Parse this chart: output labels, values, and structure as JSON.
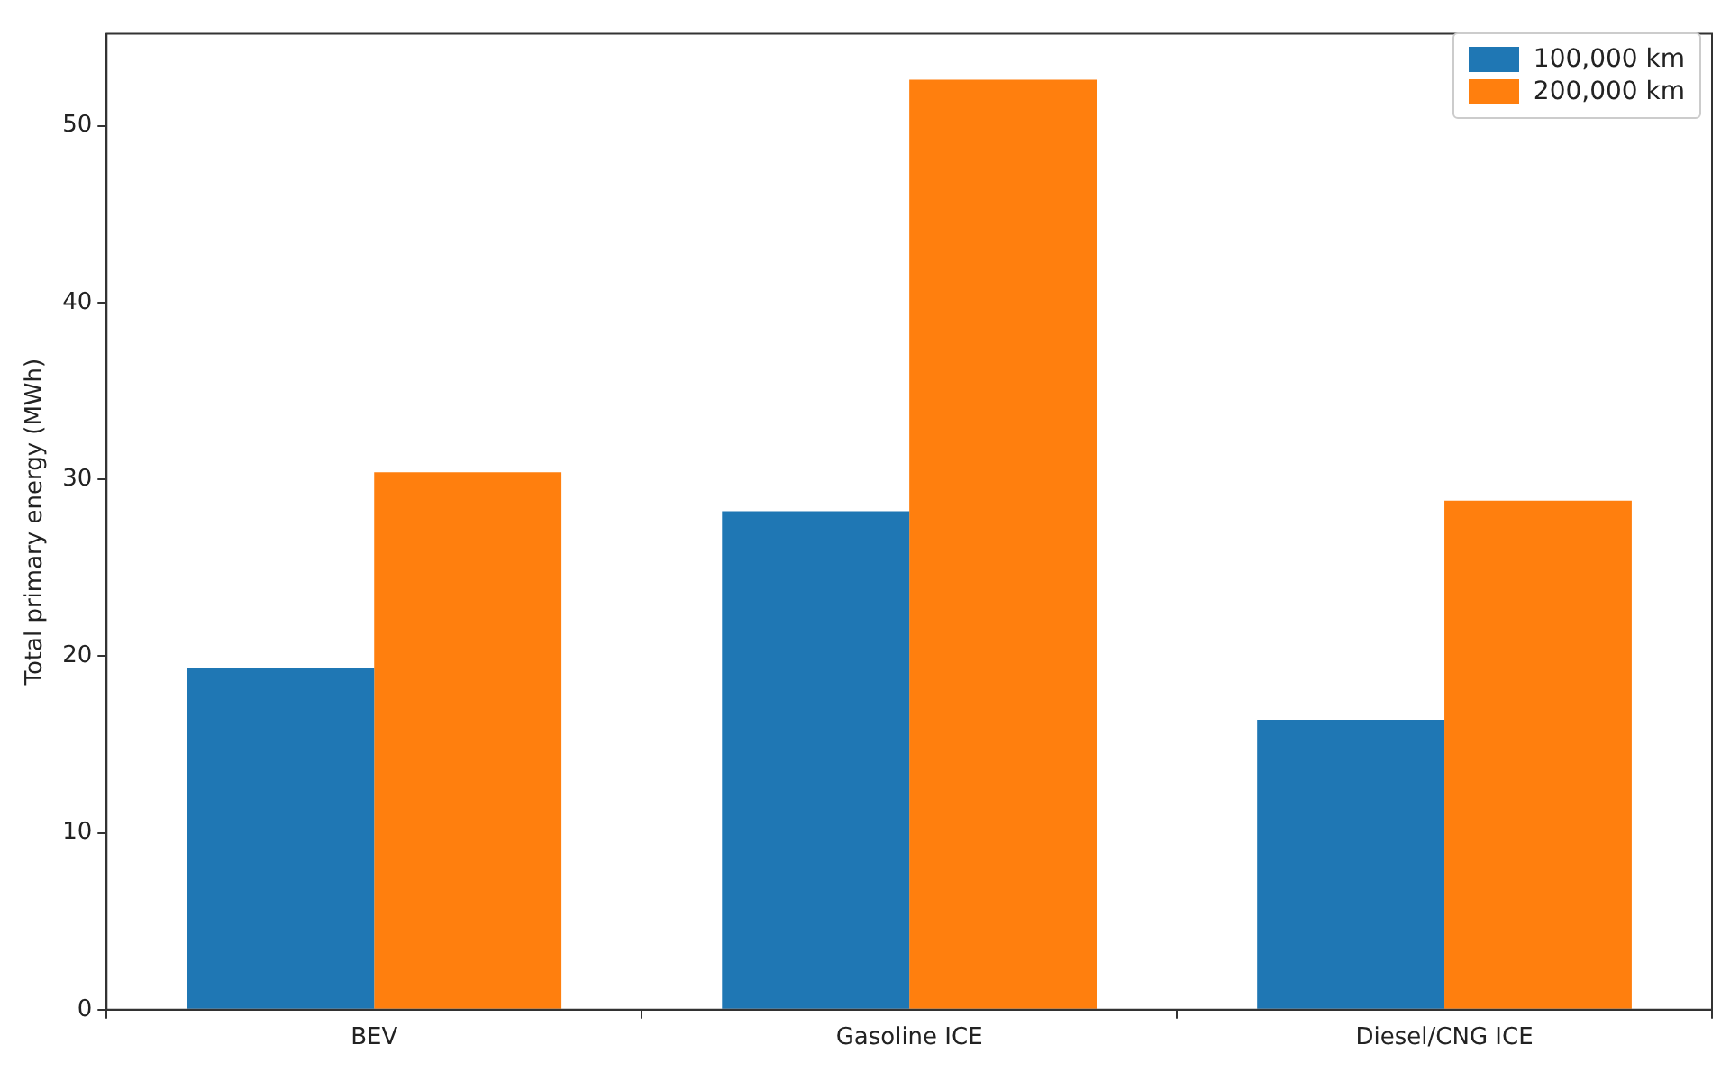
{
  "chart_data": {
    "type": "bar",
    "ylabel": "Total primary energy (MWh)",
    "categories": [
      "BEV",
      "Gasoline ICE",
      "Diesel/CNG ICE"
    ],
    "series": [
      {
        "name": "100,000 km",
        "color": "#1f77b4",
        "values": [
          19.3,
          28.2,
          16.4
        ]
      },
      {
        "name": "200,000 km",
        "color": "#ff7f0e",
        "values": [
          30.4,
          52.6,
          28.8
        ]
      }
    ],
    "ylim": [
      0,
      55.2
    ],
    "yticks": [
      0,
      10,
      20,
      30,
      40,
      50
    ],
    "grid": false,
    "legend": "top right"
  }
}
